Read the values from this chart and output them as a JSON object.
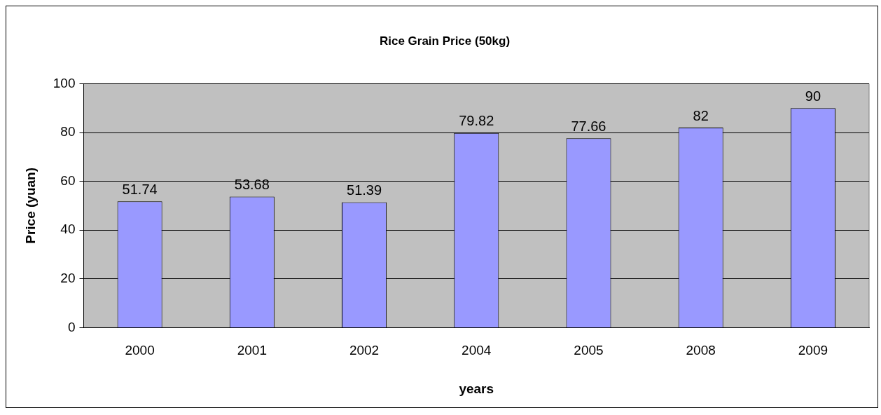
{
  "chart_data": {
    "type": "bar",
    "title": "Rice Grain Price (50kg)",
    "xlabel": "years",
    "ylabel": "Price (yuan)",
    "categories": [
      "2000",
      "2001",
      "2002",
      "2004",
      "2005",
      "2008",
      "2009"
    ],
    "values": [
      51.74,
      53.68,
      51.39,
      79.82,
      77.66,
      82,
      90
    ],
    "color": "#9999ff",
    "ylim": [
      0,
      100
    ],
    "yticks": [
      0,
      20,
      40,
      60,
      80,
      100
    ],
    "grid": "y",
    "data_labels": true
  }
}
